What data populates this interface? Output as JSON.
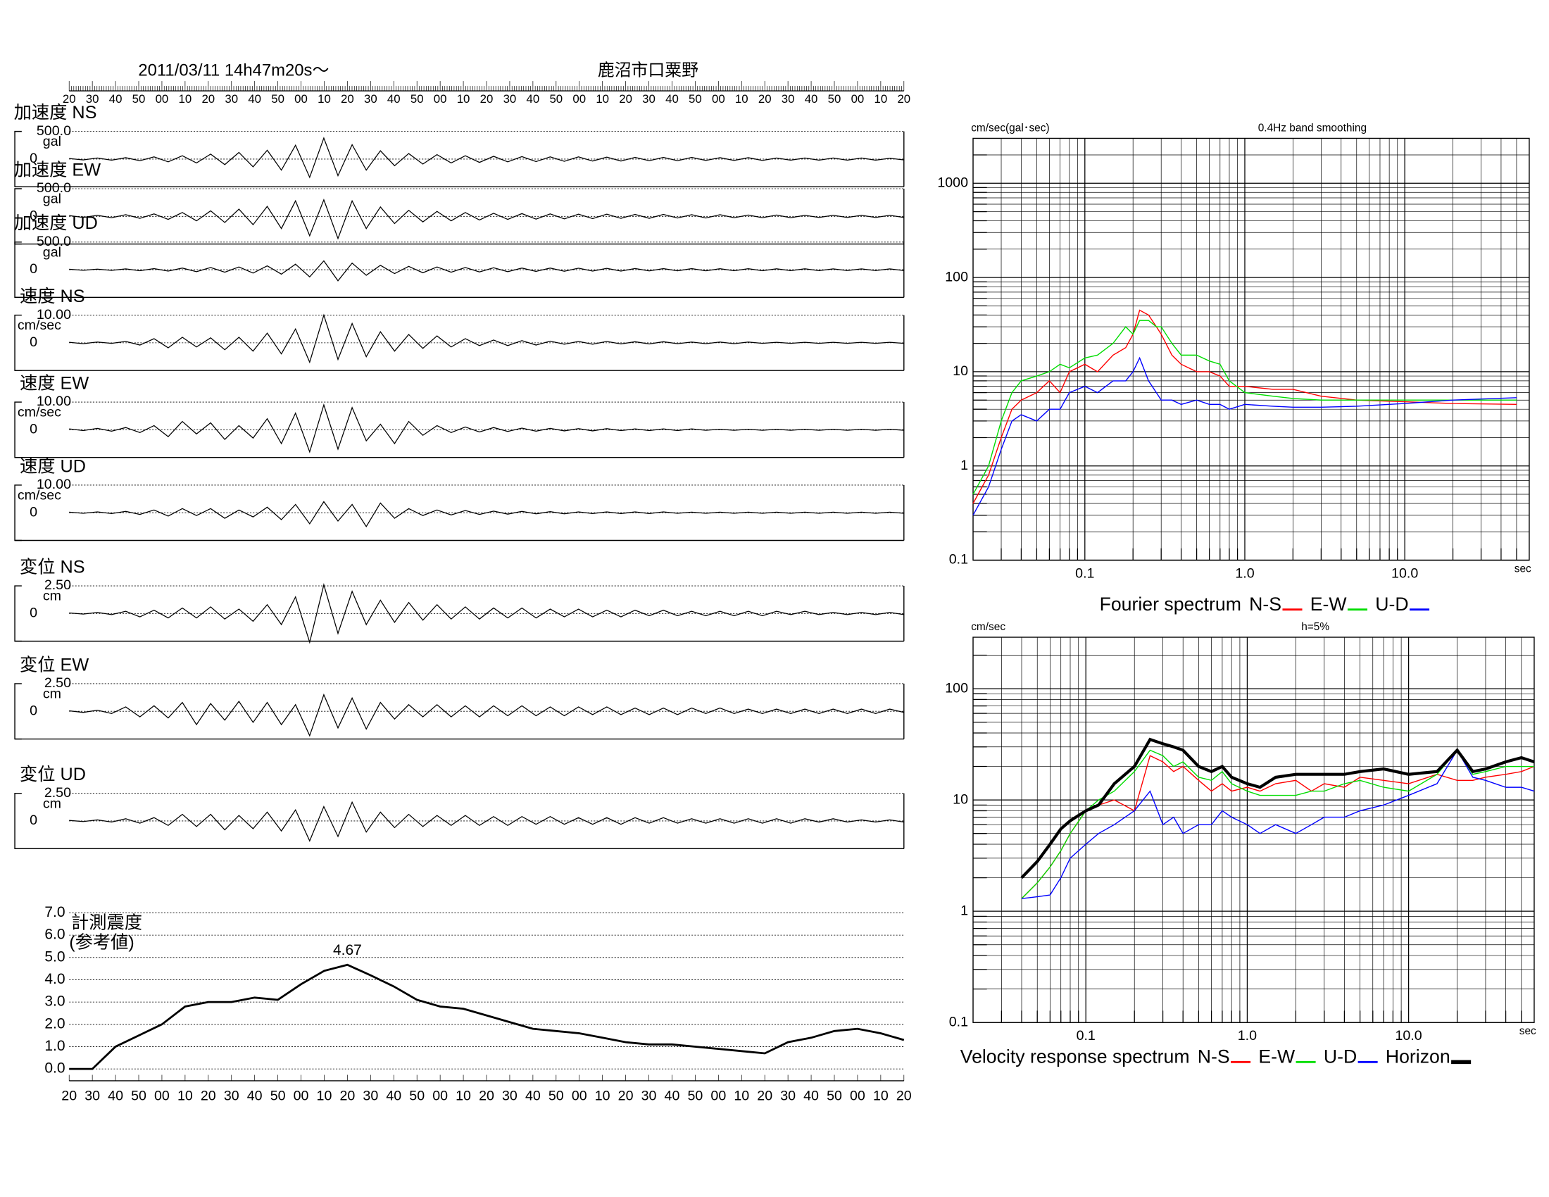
{
  "header": {
    "date": "2011/03/11  14h47m20s～",
    "station": "鹿沼市口粟野"
  },
  "chart_data": [
    {
      "type": "line",
      "title": "加速度 NS",
      "unit": "gal",
      "ylim": [
        -500,
        500
      ],
      "yticks": [
        0,
        {
          "value": 500,
          "label": "500.0"
        }
      ],
      "values": [
        10,
        -15,
        20,
        -20,
        25,
        -30,
        40,
        -50,
        60,
        -70,
        90,
        -100,
        120,
        -140,
        160,
        -200,
        250,
        -330,
        380,
        -300,
        260,
        -200,
        150,
        -120,
        100,
        -90,
        80,
        -70,
        60,
        -60,
        50,
        -50,
        45,
        -45,
        40,
        -40,
        40,
        -35,
        35,
        -35,
        30,
        -30,
        30,
        -30,
        30,
        -25,
        25,
        -25,
        25,
        -25,
        20,
        -20,
        20,
        -20,
        20,
        -20,
        20,
        -20,
        15,
        -15
      ]
    },
    {
      "type": "line",
      "title": "加速度 EW",
      "unit": "gal",
      "ylim": [
        -500,
        500
      ],
      "yticks": [
        0,
        {
          "value": 500,
          "label": "500.0"
        }
      ],
      "values": [
        15,
        -20,
        20,
        -25,
        30,
        -35,
        45,
        -55,
        70,
        -80,
        100,
        -110,
        130,
        -150,
        180,
        -220,
        280,
        -350,
        300,
        -400,
        280,
        -220,
        170,
        -130,
        110,
        -100,
        90,
        -80,
        70,
        -65,
        55,
        -55,
        50,
        -50,
        45,
        -45,
        40,
        -40,
        40,
        -35,
        35,
        -35,
        35,
        -30,
        30,
        -30,
        30,
        -25,
        25,
        -25,
        25,
        -25,
        20,
        -20,
        20,
        -20,
        20,
        -20,
        20,
        -20
      ]
    },
    {
      "type": "line",
      "title": "加速度 UD",
      "unit": "gal",
      "ylim": [
        -500,
        500
      ],
      "yticks": [
        0,
        {
          "value": 500,
          "label": "500.0"
        }
      ],
      "values": [
        8,
        -10,
        10,
        -12,
        15,
        -18,
        20,
        -25,
        30,
        -35,
        40,
        -45,
        50,
        -60,
        70,
        -80,
        100,
        -130,
        160,
        -200,
        120,
        -100,
        80,
        -70,
        60,
        -55,
        50,
        -45,
        40,
        -40,
        35,
        -35,
        30,
        -30,
        30,
        -28,
        28,
        -25,
        25,
        -25,
        22,
        -22,
        20,
        -20,
        20,
        -20,
        18,
        -18,
        18,
        -18,
        16,
        -16,
        16,
        -16,
        15,
        -15,
        15,
        -15,
        15,
        -15
      ]
    },
    {
      "type": "line",
      "title": "速度 NS",
      "unit": "cm/sec",
      "ylim": [
        -10,
        10
      ],
      "yticks": [
        0,
        {
          "value": 10,
          "label": "10.00"
        }
      ],
      "values": [
        0.2,
        -0.3,
        0.3,
        -0.2,
        0.5,
        -0.8,
        1.5,
        -1.8,
        2,
        -1.5,
        1.8,
        -2.5,
        2,
        -3,
        3.5,
        -4,
        5,
        -7,
        10,
        -6,
        7,
        -5,
        4,
        -3,
        3,
        -2,
        2.5,
        -1.5,
        1.5,
        -1,
        1,
        -1,
        0.8,
        -0.8,
        0.6,
        -0.5,
        0.5,
        -0.5,
        0.5,
        -0.4,
        0.4,
        -0.4,
        0.4,
        -0.3,
        0.3,
        -0.3,
        0.3,
        -0.3,
        0.3,
        -0.2,
        0.2,
        -0.2,
        0.2,
        -0.2,
        0.2,
        -0.2,
        0.2,
        -0.2,
        0.2,
        -0.2
      ]
    },
    {
      "type": "line",
      "title": "速度 EW",
      "unit": "cm/sec",
      "ylim": [
        -10,
        10
      ],
      "yticks": [
        0,
        {
          "value": 10,
          "label": "10.00"
        }
      ],
      "values": [
        0.3,
        -0.3,
        0.5,
        -0.5,
        0.8,
        -1,
        1.5,
        -2.5,
        3,
        -1.5,
        2.5,
        -3.5,
        1.5,
        -3,
        4,
        -5,
        6,
        -8,
        9,
        -7,
        8,
        -4,
        2,
        -5,
        3,
        -2,
        1.5,
        -1,
        1,
        -0.8,
        0.8,
        -0.6,
        0.6,
        -0.5,
        0.5,
        -0.4,
        0.4,
        -0.4,
        0.4,
        -0.3,
        0.3,
        -0.3,
        0.3,
        -0.3,
        0.3,
        -0.2,
        0.2,
        -0.2,
        0.2,
        -0.2,
        0.2,
        -0.2,
        0.2,
        -0.2,
        0.2,
        -0.2,
        0.2,
        -0.2,
        0.2,
        -0.2
      ]
    },
    {
      "type": "line",
      "title": "速度 UD",
      "unit": "cm/sec",
      "ylim": [
        -10,
        10
      ],
      "yticks": [
        0,
        {
          "value": 10,
          "label": "10.00"
        }
      ],
      "values": [
        0.2,
        -0.2,
        0.3,
        -0.3,
        0.5,
        -0.6,
        1,
        -1.2,
        1.5,
        -1,
        1.5,
        -2,
        1,
        -1.5,
        2,
        -2.5,
        3,
        -4,
        4,
        -3,
        3,
        -5,
        3.5,
        -2,
        1.5,
        -1,
        1,
        -0.8,
        0.8,
        -0.6,
        0.6,
        -0.5,
        0.5,
        -0.4,
        0.4,
        -0.4,
        0.3,
        -0.3,
        0.3,
        -0.3,
        0.3,
        -0.3,
        0.3,
        -0.2,
        0.2,
        -0.2,
        0.2,
        -0.2,
        0.2,
        -0.2,
        0.2,
        -0.2,
        0.2,
        -0.2,
        0.2,
        -0.2,
        0.2,
        -0.2,
        0.2,
        -0.2
      ]
    },
    {
      "type": "line",
      "title": "変位 NS",
      "unit": "cm",
      "ylim": [
        -2.5,
        2.5
      ],
      "yticks": [
        0,
        {
          "value": 2.5,
          "label": "2.50"
        }
      ],
      "values": [
        0.05,
        -0.05,
        0.1,
        -0.1,
        0.2,
        -0.3,
        0.3,
        -0.4,
        0.5,
        -0.4,
        0.6,
        -0.5,
        0.4,
        -0.7,
        0.8,
        -1,
        1.5,
        -2.6,
        2.6,
        -1.8,
        2,
        -1,
        1.2,
        -0.8,
        1,
        -0.6,
        0.8,
        -0.5,
        0.6,
        -0.5,
        0.5,
        -0.4,
        0.5,
        -0.4,
        0.4,
        -0.3,
        0.4,
        -0.3,
        0.3,
        -0.3,
        0.3,
        -0.2,
        0.3,
        -0.2,
        0.2,
        -0.2,
        0.2,
        -0.2,
        0.2,
        -0.2,
        0.2,
        -0.1,
        0.2,
        -0.1,
        0.1,
        -0.1,
        0.1,
        -0.1,
        0.1,
        -0.1
      ]
    },
    {
      "type": "line",
      "title": "変位 EW",
      "unit": "cm",
      "ylim": [
        -2.5,
        2.5
      ],
      "yticks": [
        0,
        {
          "value": 2.5,
          "label": "2.50"
        }
      ],
      "values": [
        0.05,
        -0.1,
        0.1,
        -0.2,
        0.4,
        -0.5,
        0.5,
        -0.6,
        0.8,
        -1.2,
        0.7,
        -0.8,
        0.9,
        -1,
        0.8,
        -1.2,
        0.6,
        -2.2,
        1.5,
        -1.5,
        1.2,
        -1.6,
        0.8,
        -0.7,
        0.6,
        -0.5,
        0.6,
        -0.5,
        0.5,
        -0.5,
        0.5,
        -0.4,
        0.5,
        -0.4,
        0.4,
        -0.4,
        0.4,
        -0.3,
        0.4,
        -0.3,
        0.3,
        -0.3,
        0.3,
        -0.3,
        0.3,
        -0.2,
        0.3,
        -0.2,
        0.2,
        -0.2,
        0.2,
        -0.2,
        0.2,
        -0.2,
        0.2,
        -0.2,
        0.2,
        -0.2,
        0.2,
        -0.1
      ]
    },
    {
      "type": "line",
      "title": "変位 UD",
      "unit": "cm",
      "ylim": [
        -2.5,
        2.5
      ],
      "yticks": [
        0,
        {
          "value": 2.5,
          "label": "2.50"
        }
      ],
      "values": [
        0.05,
        -0.05,
        0.1,
        -0.1,
        0.2,
        -0.2,
        0.3,
        -0.4,
        0.6,
        -0.5,
        0.6,
        -0.8,
        0.5,
        -0.7,
        0.8,
        -0.9,
        1,
        -1.8,
        1.3,
        -1.4,
        1.7,
        -1,
        0.8,
        -0.6,
        0.6,
        -0.5,
        0.5,
        -0.4,
        0.5,
        -0.4,
        0.4,
        -0.4,
        0.4,
        -0.3,
        0.4,
        -0.3,
        0.3,
        -0.3,
        0.3,
        -0.3,
        0.3,
        -0.2,
        0.3,
        -0.2,
        0.2,
        -0.2,
        0.2,
        -0.2,
        0.2,
        -0.2,
        0.2,
        -0.2,
        0.2,
        -0.1,
        0.2,
        -0.1,
        0.1,
        -0.1,
        0.1,
        -0.1
      ]
    },
    {
      "type": "line",
      "title": "計測震度",
      "subtitle": "(参考値)",
      "peak_label": "4.67",
      "categories": [
        "20",
        "30",
        "40",
        "50",
        "00",
        "10",
        "20",
        "30",
        "40",
        "50",
        "00",
        "10",
        "20",
        "30",
        "40",
        "50",
        "00",
        "10",
        "20",
        "30",
        "40",
        "50",
        "00",
        "10",
        "20",
        "30",
        "40",
        "50",
        "00",
        "10",
        "20",
        "30",
        "40",
        "50",
        "00",
        "10",
        "20"
      ],
      "values": [
        0,
        0,
        1.0,
        1.5,
        2.0,
        2.8,
        3.0,
        3.0,
        3.2,
        3.1,
        3.8,
        4.4,
        4.67,
        4.2,
        3.7,
        3.1,
        2.8,
        2.7,
        2.4,
        2.1,
        1.8,
        1.7,
        1.6,
        1.4,
        1.2,
        1.1,
        1.1,
        1.0,
        0.9,
        0.8,
        0.7,
        1.2,
        1.4,
        1.7,
        1.8,
        1.6,
        1.3
      ],
      "ylim": [
        0,
        7
      ],
      "yticks": [
        {
          "value": 0,
          "label": "0.0"
        },
        {
          "value": 1,
          "label": "1.0"
        },
        {
          "value": 2,
          "label": "2.0"
        },
        {
          "value": 3,
          "label": "3.0"
        },
        {
          "value": 4,
          "label": "4.0"
        },
        {
          "value": 5,
          "label": "5.0"
        },
        {
          "value": 6,
          "label": "6.0"
        },
        {
          "value": 7,
          "label": "7.0"
        }
      ],
      "grid": true
    },
    {
      "type": "line",
      "log_x": true,
      "log_y": true,
      "grid": true,
      "unit": "cm/sec(gal･sec)",
      "subtitle": "0.4Hz band smoothing",
      "x_unit": "sec",
      "legend_title": "Fourier spectrum",
      "xlim": [
        0.02,
        60
      ],
      "ylim": [
        0.1,
        3000
      ],
      "xticks": [
        0.1,
        {
          "value": 1,
          "label": "1.0"
        },
        {
          "value": 10,
          "label": "10.0"
        }
      ],
      "yticks": [
        0.1,
        1,
        10,
        100,
        1000
      ],
      "x": [
        0.02,
        0.025,
        0.03,
        0.035,
        0.04,
        0.05,
        0.06,
        0.07,
        0.08,
        0.1,
        0.12,
        0.15,
        0.18,
        0.2,
        0.22,
        0.25,
        0.28,
        0.3,
        0.35,
        0.4,
        0.5,
        0.6,
        0.7,
        0.8,
        1.0,
        1.5,
        2,
        3,
        5,
        10,
        20,
        50
      ],
      "series": [
        {
          "name": "N-S",
          "color": "#ff0000",
          "values": [
            0.4,
            0.8,
            2,
            4,
            5,
            6,
            8,
            6,
            10,
            12,
            10,
            15,
            18,
            25,
            45,
            40,
            30,
            25,
            15,
            12,
            10,
            10,
            9,
            7,
            7,
            6.5,
            6.5,
            5.5,
            5,
            4.8,
            4.6,
            4.5
          ]
        },
        {
          "name": "E-W",
          "color": "#00dd00",
          "values": [
            0.5,
            1,
            3,
            6,
            8,
            9,
            10,
            12,
            11,
            14,
            15,
            20,
            30,
            25,
            35,
            35,
            30,
            30,
            20,
            15,
            15,
            13,
            12,
            8,
            6,
            5.5,
            5.2,
            5,
            5,
            5,
            5,
            5
          ]
        },
        {
          "name": "U-D",
          "color": "#0000ff",
          "values": [
            0.3,
            0.6,
            1.5,
            3,
            3.5,
            3,
            4,
            4,
            6,
            7,
            6,
            8,
            8,
            10,
            14,
            8,
            6,
            5,
            5,
            4.5,
            5,
            4.5,
            4.5,
            4,
            4.5,
            4.3,
            4.2,
            4.2,
            4.3,
            4.6,
            5,
            5.3
          ]
        }
      ]
    },
    {
      "type": "line",
      "log_x": true,
      "log_y": true,
      "grid": true,
      "unit": "cm/sec",
      "subtitle": "h=5%",
      "x_unit": "sec",
      "legend_title": "Velocity response spectrum",
      "xlim": [
        0.02,
        60
      ],
      "ylim": [
        0.1,
        290
      ],
      "xticks": [
        0.1,
        {
          "value": 1,
          "label": "1.0"
        },
        {
          "value": 10,
          "label": "10.0"
        }
      ],
      "yticks": [
        0.1,
        1,
        10,
        100
      ],
      "x": [
        0.04,
        0.05,
        0.06,
        0.07,
        0.08,
        0.1,
        0.12,
        0.15,
        0.2,
        0.25,
        0.3,
        0.35,
        0.4,
        0.5,
        0.6,
        0.7,
        0.8,
        1.0,
        1.2,
        1.5,
        2,
        2.5,
        3,
        4,
        5,
        7,
        10,
        15,
        20,
        25,
        30,
        40,
        50,
        60
      ],
      "series": [
        {
          "name": "N-S",
          "color": "#ff0000",
          "values": [
            1.3,
            1.8,
            2.5,
            3.5,
            5,
            8,
            9,
            10,
            8,
            25,
            22,
            18,
            20,
            15,
            12,
            14,
            12,
            13,
            12,
            14,
            15,
            12,
            14,
            13,
            16,
            15,
            14,
            17,
            15,
            15,
            16,
            17,
            18,
            20
          ]
        },
        {
          "name": "E-W",
          "color": "#00dd00",
          "values": [
            1.3,
            1.8,
            2.5,
            3.5,
            5,
            8,
            10,
            12,
            18,
            28,
            25,
            20,
            22,
            16,
            15,
            18,
            14,
            12,
            11,
            11,
            11,
            12,
            12,
            14,
            15,
            13,
            12,
            17,
            28,
            17,
            18,
            20,
            20,
            20
          ]
        },
        {
          "name": "U-D",
          "color": "#0000ff",
          "values": [
            1.3,
            1.35,
            1.4,
            2,
            3,
            4,
            5,
            6,
            8,
            12,
            6,
            7,
            5,
            6,
            6,
            8,
            7,
            6,
            5,
            6,
            5,
            6,
            7,
            7,
            8,
            9,
            11,
            14,
            28,
            16,
            15,
            13,
            13,
            12
          ]
        },
        {
          "name": "Horizon",
          "color": "#000000",
          "width": 3,
          "values": [
            2,
            2.8,
            4,
            5.5,
            6.5,
            8,
            9,
            14,
            20,
            35,
            32,
            30,
            28,
            20,
            18,
            20,
            16,
            14,
            13,
            16,
            17,
            17,
            17,
            17,
            18,
            19,
            17,
            18,
            28,
            18,
            19,
            22,
            24,
            22
          ]
        }
      ]
    }
  ]
}
